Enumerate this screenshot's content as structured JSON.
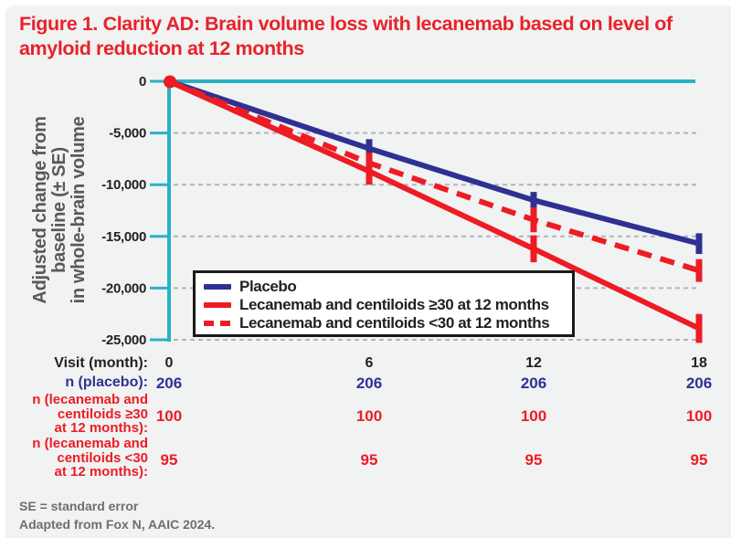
{
  "title": {
    "line1": "Figure 1. Clarity AD: Brain volume loss with lecanemab based on level of",
    "line2": "amyloid reduction at 12 months"
  },
  "chart_data": {
    "type": "line",
    "title": "Figure 1. Clarity AD: Brain volume loss with lecanemab based on level of amyloid reduction at 12 months",
    "ylabel": "Adjusted change from baseline (± SE) in whole-brain volume",
    "ylabel_lines": [
      "Adjusted change from",
      "baseline (± SE)",
      "in whole-brain volume"
    ],
    "xlabel": "Visit (month):",
    "x": [
      0,
      6,
      12,
      18
    ],
    "ylim": [
      -25000,
      0
    ],
    "yticks": [
      0,
      -5000,
      -10000,
      -15000,
      -20000,
      -25000
    ],
    "grid": "horizontal-dashed",
    "legend_position": "inside-lower-left",
    "axis_color": "#29b1c5",
    "grid_color": "#b2b4b7",
    "series": [
      {
        "name": "Placebo",
        "color": "#2e3192",
        "style": "solid",
        "values": [
          0,
          -6500,
          -11500,
          -15700
        ],
        "se": [
          0,
          900,
          800,
          1000
        ]
      },
      {
        "name": "Lecanemab and centiloids ≥30 at 12 months",
        "color": "#ed1c24",
        "style": "solid",
        "values": [
          0,
          -8700,
          -16200,
          -23900
        ],
        "se": [
          0,
          1300,
          1300,
          1400
        ]
      },
      {
        "name": "Lecanemab and centiloids <30 at 12 months",
        "color": "#ed1c24",
        "style": "dashed",
        "values": [
          0,
          -7900,
          -13400,
          -18300
        ],
        "se": [
          0,
          1000,
          1200,
          1100
        ]
      }
    ]
  },
  "table": {
    "rows": [
      {
        "label": "Visit (month):",
        "values": [
          "0",
          "6",
          "12",
          "18"
        ]
      },
      {
        "label": "n (placebo):",
        "values": [
          "206",
          "206",
          "206",
          "206"
        ]
      },
      {
        "label": "n (lecanemab and\ncentiloids ≥30\nat 12 months):",
        "values": [
          "100",
          "100",
          "100",
          "100"
        ]
      },
      {
        "label": "n (lecanemab and\ncentiloids <30\nat 12 months):",
        "values": [
          "95",
          "95",
          "95",
          "95"
        ]
      }
    ]
  },
  "footnotes": {
    "line1": "SE = standard error",
    "line2": "Adapted from Fox N, AAIC 2024."
  }
}
